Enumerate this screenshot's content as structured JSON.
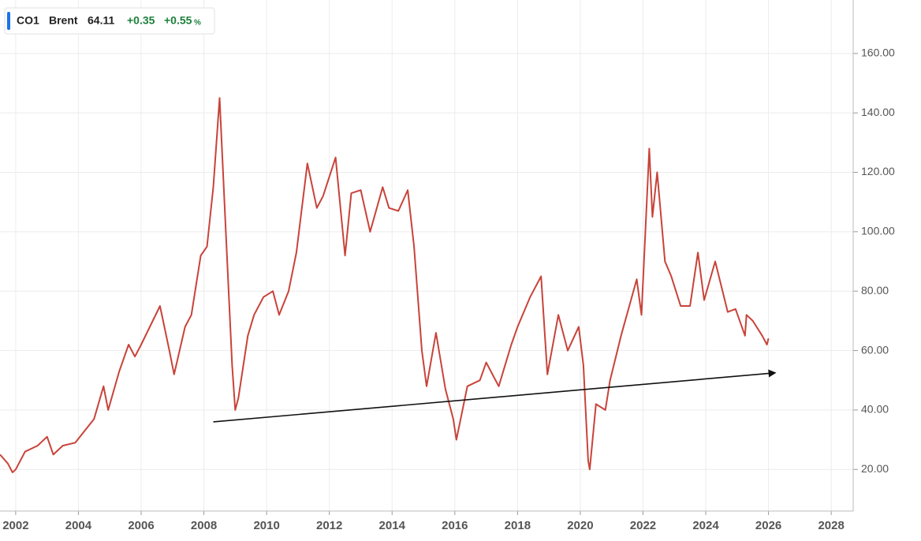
{
  "chart_data": {
    "type": "line",
    "legend": {
      "symbol": "CO1",
      "name": "Brent",
      "last": "64.11",
      "change": "+0.35",
      "change_pct": "+0.55",
      "pct_sign": "%"
    },
    "xlim": [
      2001.5,
      2028.7
    ],
    "ylim": [
      6,
      178
    ],
    "xticks": [
      2002,
      2004,
      2006,
      2008,
      2010,
      2012,
      2014,
      2016,
      2018,
      2020,
      2022,
      2024,
      2026,
      2028
    ],
    "yticks": [
      {
        "value": 20,
        "label": "20.00"
      },
      {
        "value": 40,
        "label": "40.00"
      },
      {
        "value": 60,
        "label": "60.00"
      },
      {
        "value": 80,
        "label": "80.00"
      },
      {
        "value": 100,
        "label": "100.00"
      },
      {
        "value": 120,
        "label": "120.00"
      },
      {
        "value": 140,
        "label": "140.00"
      },
      {
        "value": 160,
        "label": "160.00"
      }
    ],
    "grid": true,
    "series": [
      {
        "name": "Brent",
        "color": "#c8433a",
        "x": [
          2001.5,
          2001.75,
          2001.9,
          2002.0,
          2002.3,
          2002.7,
          2003.0,
          2003.2,
          2003.5,
          2003.9,
          2004.2,
          2004.5,
          2004.8,
          2004.95,
          2005.3,
          2005.6,
          2005.8,
          2006.0,
          2006.6,
          2006.9,
          2007.05,
          2007.4,
          2007.6,
          2007.9,
          2008.1,
          2008.3,
          2008.5,
          2008.7,
          2008.9,
          2009.0,
          2009.1,
          2009.4,
          2009.6,
          2009.9,
          2010.2,
          2010.4,
          2010.7,
          2010.95,
          2011.3,
          2011.6,
          2011.8,
          2012.2,
          2012.5,
          2012.7,
          2013.0,
          2013.3,
          2013.7,
          2013.9,
          2014.2,
          2014.5,
          2014.7,
          2014.95,
          2015.1,
          2015.4,
          2015.7,
          2015.95,
          2016.05,
          2016.4,
          2016.8,
          2017.0,
          2017.4,
          2017.8,
          2018.0,
          2018.4,
          2018.75,
          2018.95,
          2019.3,
          2019.6,
          2019.95,
          2020.1,
          2020.25,
          2020.3,
          2020.5,
          2020.8,
          2020.95,
          2021.3,
          2021.8,
          2021.95,
          2022.2,
          2022.3,
          2022.45,
          2022.7,
          2022.9,
          2023.2,
          2023.5,
          2023.75,
          2023.95,
          2024.3,
          2024.7,
          2024.95,
          2025.25,
          2025.3,
          2025.5,
          2025.8,
          2025.95,
          2026.0
        ],
        "values": [
          25,
          22,
          19,
          20,
          26,
          28,
          31,
          25,
          28,
          29,
          33,
          37,
          48,
          40,
          53,
          62,
          58,
          62,
          75,
          60,
          52,
          68,
          72,
          92,
          95,
          115,
          145,
          100,
          55,
          40,
          44,
          65,
          72,
          78,
          80,
          72,
          80,
          93,
          123,
          108,
          112,
          125,
          92,
          113,
          114,
          100,
          115,
          108,
          107,
          114,
          95,
          60,
          48,
          66,
          47,
          37,
          30,
          48,
          50,
          56,
          48,
          62,
          68,
          78,
          85,
          52,
          72,
          60,
          68,
          55,
          23,
          20,
          42,
          40,
          50,
          65,
          84,
          72,
          128,
          105,
          120,
          90,
          85,
          75,
          75,
          93,
          77,
          90,
          73,
          74,
          65,
          72,
          70,
          65,
          62,
          64.11
        ]
      }
    ],
    "trendline": {
      "x": [
        2008.3,
        2026.2
      ],
      "y": [
        36,
        52.5
      ]
    }
  }
}
